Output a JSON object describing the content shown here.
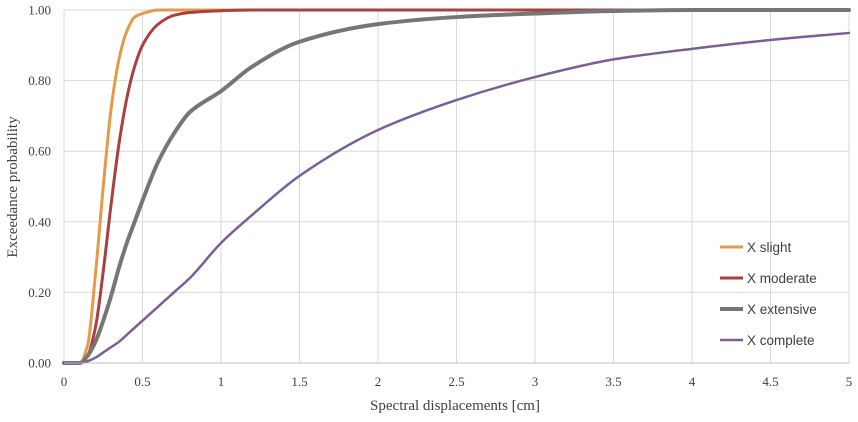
{
  "chart_data": {
    "type": "line",
    "title": "",
    "xlabel": "Spectral displacements [cm]",
    "ylabel": "Exceedance probability",
    "xlim": [
      0,
      5
    ],
    "ylim": [
      0,
      1
    ],
    "x_ticks": [
      0,
      0.5,
      1,
      1.5,
      2,
      2.5,
      3,
      3.5,
      4,
      4.5,
      5
    ],
    "x_tick_labels": [
      "0",
      "0.5",
      "1",
      "1.5",
      "2",
      "2.5",
      "3",
      "3.5",
      "4",
      "4.5",
      "5"
    ],
    "y_ticks": [
      0,
      0.2,
      0.4,
      0.6,
      0.8,
      1.0
    ],
    "y_tick_labels": [
      "0.00",
      "0.20",
      "0.40",
      "0.60",
      "0.80",
      "1.00"
    ],
    "grid": true,
    "legend_position": "bottom-right",
    "x": [
      0,
      0.1,
      0.15,
      0.2,
      0.25,
      0.3,
      0.35,
      0.4,
      0.45,
      0.5,
      0.6,
      0.7,
      0.8,
      1,
      1.2,
      1.5,
      2,
      2.5,
      3,
      3.5,
      4,
      4.5,
      5
    ],
    "series": [
      {
        "name": "X slight",
        "color": "#E5994A",
        "values": [
          0,
          0,
          0.05,
          0.25,
          0.5,
          0.72,
          0.86,
          0.94,
          0.98,
          0.99,
          1.0,
          1.0,
          1.0,
          1.0,
          1.0,
          1.0,
          1.0,
          1.0,
          1.0,
          1.0,
          1.0,
          1.0,
          1.0
        ]
      },
      {
        "name": "X moderate",
        "color": "#A8413F",
        "values": [
          0,
          0,
          0.02,
          0.1,
          0.26,
          0.45,
          0.62,
          0.75,
          0.84,
          0.9,
          0.96,
          0.985,
          0.993,
          0.998,
          1.0,
          1.0,
          1.0,
          1.0,
          1.0,
          1.0,
          1.0,
          1.0,
          1.0
        ]
      },
      {
        "name": "X extensive",
        "color": "#767676",
        "values": [
          0,
          0,
          0.02,
          0.06,
          0.12,
          0.19,
          0.27,
          0.34,
          0.4,
          0.46,
          0.57,
          0.65,
          0.71,
          0.77,
          0.84,
          0.91,
          0.96,
          0.98,
          0.99,
          0.997,
          1.0,
          1.0,
          1.0
        ]
      },
      {
        "name": "X complete",
        "color": "#7A5E96",
        "values": [
          0,
          0,
          0.005,
          0.015,
          0.03,
          0.045,
          0.06,
          0.08,
          0.1,
          0.12,
          0.16,
          0.2,
          0.24,
          0.34,
          0.42,
          0.53,
          0.66,
          0.745,
          0.81,
          0.86,
          0.89,
          0.915,
          0.935
        ]
      }
    ]
  }
}
